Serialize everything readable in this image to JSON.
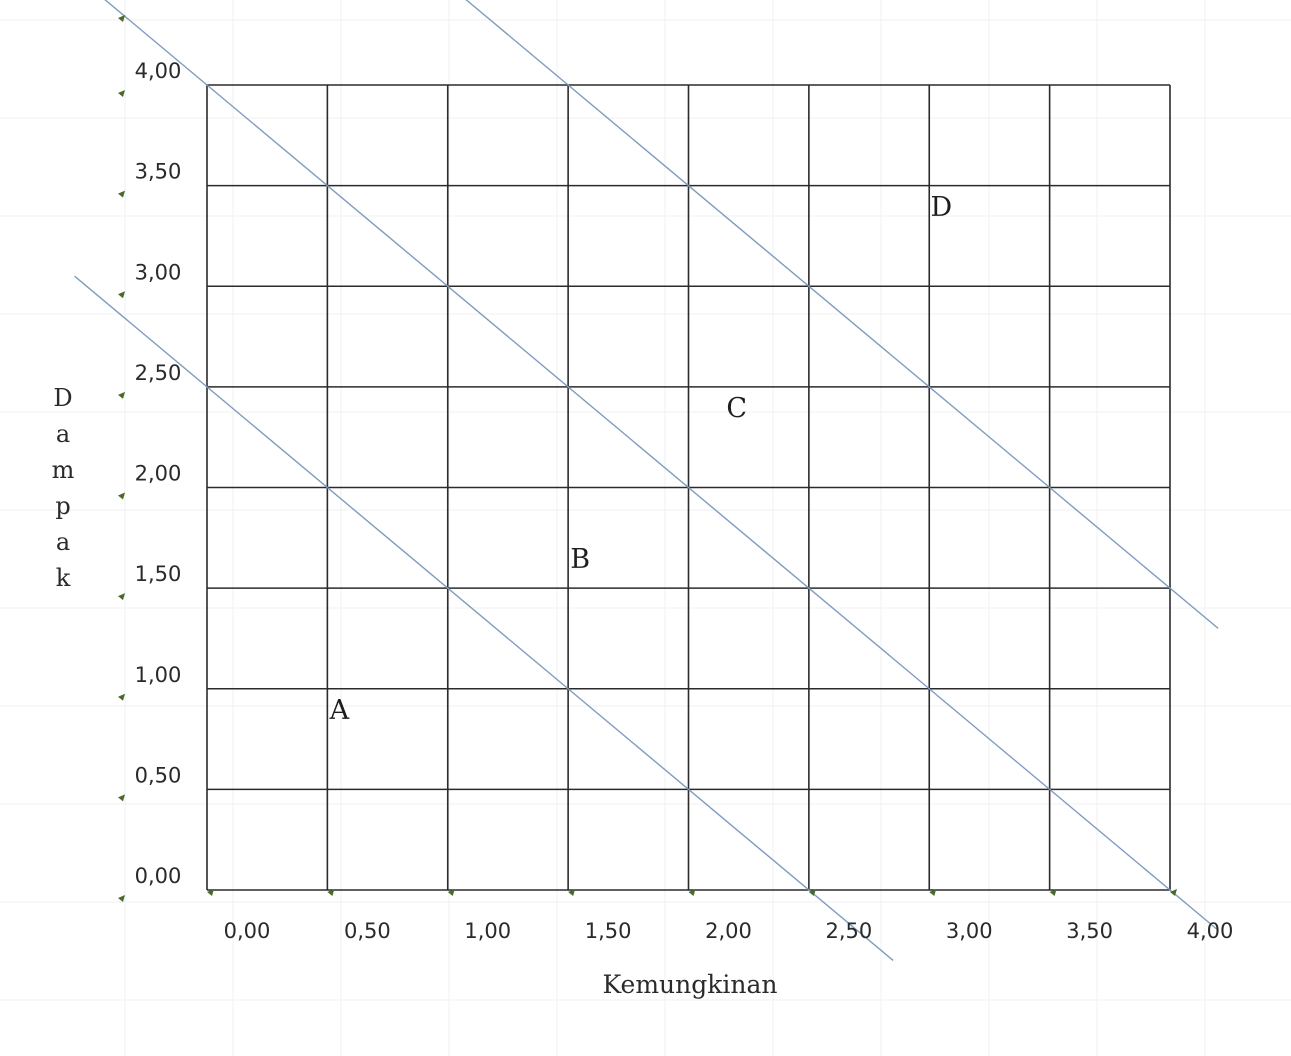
{
  "diagram": {
    "x_axis": {
      "title": "Kemungkinan",
      "ticks": [
        "0,00",
        "0,50",
        "1,00",
        "1,50",
        "2,00",
        "2,50",
        "3,00",
        "3,50",
        "4,00"
      ]
    },
    "y_axis": {
      "title": "Dampak",
      "ticks": [
        "0,00",
        "0,50",
        "1,00",
        "1,50",
        "2,00",
        "2,50",
        "3,00",
        "3,50",
        "4,00"
      ]
    },
    "range": {
      "x": [
        0,
        4
      ],
      "y": [
        0,
        4
      ],
      "step": 0.5
    },
    "zone_boundaries": [
      {
        "equation": "x + y",
        "value": 2.5
      },
      {
        "equation": "x + y",
        "value": 4.0
      },
      {
        "equation": "x + y",
        "value": 5.5
      }
    ],
    "zones": [
      {
        "label": "A",
        "x": 0.55,
        "y": 0.85
      },
      {
        "label": "B",
        "x": 1.55,
        "y": 1.6
      },
      {
        "label": "C",
        "x": 2.2,
        "y": 2.35
      },
      {
        "label": "D",
        "x": 3.05,
        "y": 3.35
      }
    ],
    "colors": {
      "grid": "#2b2b2b",
      "boundary": "#7f9cc0",
      "marker": "#4a6a2a"
    }
  }
}
